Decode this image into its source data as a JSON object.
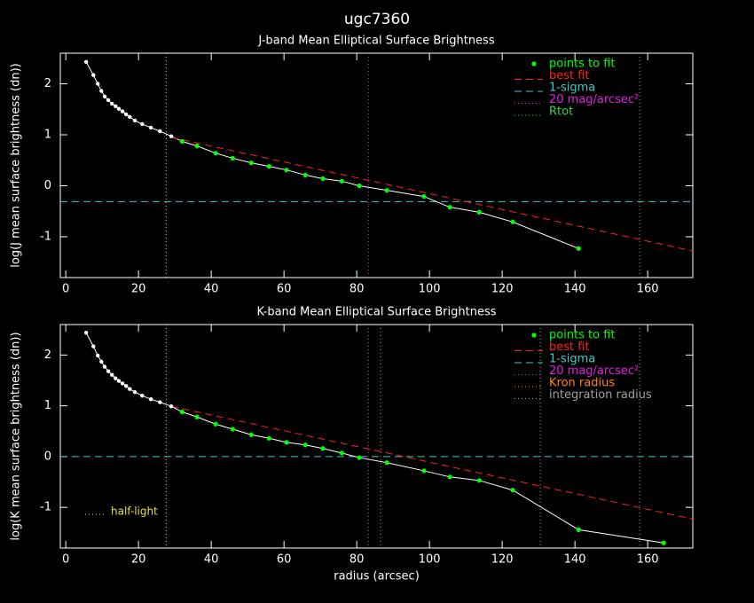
{
  "title": "ugc7360",
  "chart_data": [
    {
      "type": "line",
      "title": "J-band Mean Elliptical Surface Brightness",
      "ylabel": "log(J mean surface brightness (dn))",
      "xlim": [
        -1.5,
        172.4
      ],
      "ylim": [
        -1.8,
        2.6
      ],
      "xticks": [
        0,
        20,
        40,
        60,
        80,
        100,
        120,
        140,
        160
      ],
      "yticks": [
        -1,
        0,
        1,
        2
      ],
      "legend": "upper right",
      "series": [
        {
          "color": "#ffffff",
          "markers": true,
          "line": "solid",
          "x": [
            5.6,
            7.6,
            8.8,
            9.8,
            10.7,
            11.7,
            12.7,
            13.7,
            14.6,
            15.6,
            16.6,
            17.6,
            19.0,
            21.0,
            23.4,
            25.9,
            29.0
          ],
          "values": [
            2.43,
            2.17,
            2.0,
            1.86,
            1.75,
            1.68,
            1.61,
            1.56,
            1.51,
            1.46,
            1.4,
            1.35,
            1.28,
            1.21,
            1.14,
            1.07,
            0.97
          ]
        },
        {
          "name": "points to fit",
          "color": "#00ff00",
          "line_color": "#ffffff",
          "markers": true,
          "line": "solid",
          "join_previous": true,
          "x": [
            32.0,
            36.1,
            41.2,
            45.9,
            51.0,
            55.9,
            60.7,
            65.9,
            70.7,
            75.9,
            80.7,
            88.3,
            98.5,
            105.6,
            113.7,
            122.9,
            141.0
          ],
          "values": [
            0.87,
            0.78,
            0.64,
            0.54,
            0.45,
            0.38,
            0.31,
            0.21,
            0.14,
            0.09,
            0.0,
            -0.09,
            -0.21,
            -0.42,
            -0.52,
            -0.71,
            -1.23
          ]
        },
        {
          "name": "best fit",
          "color": "#ff2020",
          "markers": false,
          "line": "dashed",
          "x": [
            29.0,
            172.4
          ],
          "values": [
            0.95,
            -1.28
          ]
        }
      ],
      "hlines": [
        {
          "name": "1-sigma",
          "color": "#40c8c8",
          "y": -0.31
        }
      ],
      "vlines": [
        {
          "name": "20 mag/arcsec²",
          "color": "#e020e0",
          "x": 83.2
        },
        {
          "name": "Rtot",
          "color": "#40d040",
          "x": 157.8
        },
        {
          "color": "#e0e040",
          "x": 27.6
        }
      ]
    },
    {
      "type": "line",
      "title": "K-band Mean Elliptical Surface Brightness",
      "ylabel": "log(K mean surface brightness (dn))",
      "xlabel": "radius (arcsec)",
      "xlim": [
        -1.5,
        172.4
      ],
      "ylim": [
        -1.8,
        2.6
      ],
      "xticks": [
        0,
        20,
        40,
        60,
        80,
        100,
        120,
        140,
        160
      ],
      "yticks": [
        -1,
        0,
        1,
        2
      ],
      "legend": "upper right",
      "series": [
        {
          "color": "#ffffff",
          "markers": true,
          "line": "solid",
          "x": [
            5.6,
            7.6,
            8.8,
            9.8,
            10.7,
            11.7,
            12.7,
            13.7,
            14.6,
            15.6,
            16.6,
            17.6,
            19.0,
            21.0,
            23.4,
            25.9,
            29.0
          ],
          "values": [
            2.44,
            2.17,
            1.99,
            1.87,
            1.77,
            1.68,
            1.61,
            1.54,
            1.49,
            1.44,
            1.39,
            1.33,
            1.27,
            1.2,
            1.13,
            1.07,
            0.99
          ]
        },
        {
          "name": "points to fit",
          "color": "#00ff00",
          "line_color": "#ffffff",
          "markers": true,
          "line": "solid",
          "join_previous": true,
          "x": [
            32.0,
            36.1,
            41.2,
            45.9,
            51.0,
            55.9,
            60.7,
            65.9,
            70.7,
            75.9,
            80.7,
            88.3,
            98.5,
            105.6,
            113.7,
            122.9,
            141.0,
            164.4
          ],
          "values": [
            0.88,
            0.78,
            0.64,
            0.54,
            0.43,
            0.36,
            0.28,
            0.23,
            0.16,
            0.07,
            -0.02,
            -0.12,
            -0.28,
            -0.4,
            -0.47,
            -0.66,
            -1.44,
            -1.7
          ]
        },
        {
          "name": "best fit",
          "color": "#ff2020",
          "markers": false,
          "line": "dashed",
          "x": [
            29.0,
            172.4
          ],
          "values": [
            0.99,
            -1.23
          ]
        }
      ],
      "hlines": [
        {
          "name": "1-sigma",
          "color": "#40c8c8",
          "y": 0.0
        }
      ],
      "vlines": [
        {
          "name": "20 mag/arcsec²",
          "color": "#e020e0",
          "x": 83.2
        },
        {
          "name": "Kron radius",
          "color": "#ff8020",
          "x": 86.6
        },
        {
          "name": "integration radius",
          "color": "#a0a0a0",
          "x": 130.5
        },
        {
          "color": "#40d040",
          "x": 157.8
        },
        {
          "name": "half-light",
          "color": "#e0e040",
          "x": 27.6,
          "legend": "lower left"
        }
      ]
    }
  ]
}
